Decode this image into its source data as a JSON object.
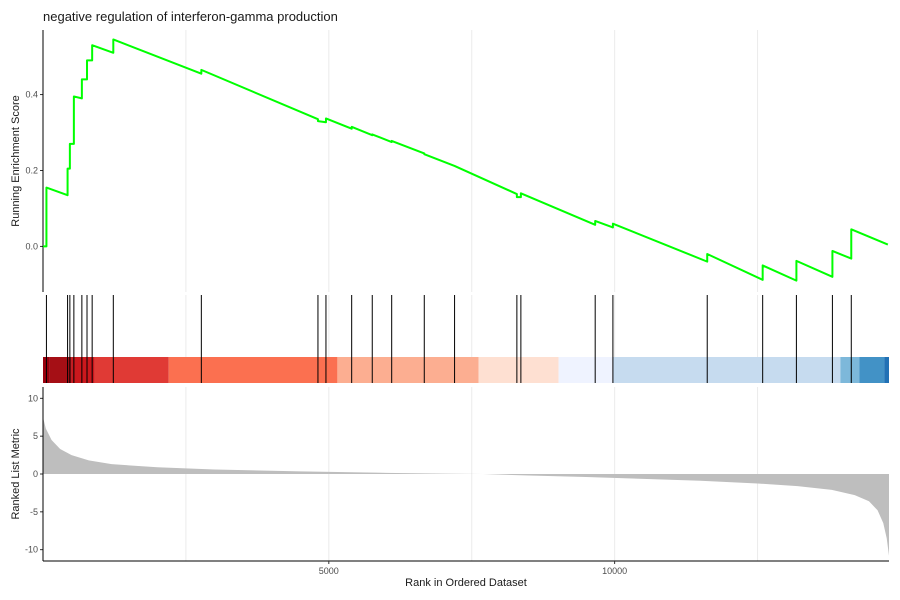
{
  "chart_data": {
    "type": "line",
    "title": "negative regulation of interferon-gamma production",
    "xlabel": "Rank in Ordered Dataset",
    "x_range": [
      0,
      14800
    ],
    "x_ticks": [
      5000,
      10000
    ],
    "x_tick_labels": [
      "5000",
      "10000"
    ],
    "grid": true,
    "series_color": "#00ff00",
    "enrichment": {
      "ylabel": "Running Enrichment Score",
      "y_range": [
        -0.12,
        0.57
      ],
      "y_ticks": [
        0.0,
        0.2,
        0.4
      ],
      "y_tick_labels": [
        "0.0",
        "0.2",
        "0.4"
      ],
      "points": [
        [
          0,
          0.0
        ],
        [
          60,
          0.0
        ],
        [
          60,
          0.155
        ],
        [
          430,
          0.135
        ],
        [
          430,
          0.205
        ],
        [
          470,
          0.205
        ],
        [
          470,
          0.27
        ],
        [
          540,
          0.27
        ],
        [
          540,
          0.395
        ],
        [
          680,
          0.39
        ],
        [
          680,
          0.44
        ],
        [
          770,
          0.44
        ],
        [
          770,
          0.49
        ],
        [
          860,
          0.49
        ],
        [
          860,
          0.53
        ],
        [
          1230,
          0.51
        ],
        [
          1230,
          0.545
        ],
        [
          2770,
          0.455
        ],
        [
          2770,
          0.465
        ],
        [
          4810,
          0.335
        ],
        [
          4810,
          0.33
        ],
        [
          4950,
          0.327
        ],
        [
          4950,
          0.337
        ],
        [
          5400,
          0.31
        ],
        [
          5400,
          0.315
        ],
        [
          5760,
          0.293
        ],
        [
          5760,
          0.295
        ],
        [
          6100,
          0.275
        ],
        [
          6100,
          0.278
        ],
        [
          6670,
          0.245
        ],
        [
          6670,
          0.243
        ],
        [
          7200,
          0.212
        ],
        [
          8290,
          0.138
        ],
        [
          8290,
          0.13
        ],
        [
          8360,
          0.13
        ],
        [
          8360,
          0.14
        ],
        [
          9660,
          0.057
        ],
        [
          9660,
          0.067
        ],
        [
          9970,
          0.05
        ],
        [
          9970,
          0.06
        ],
        [
          11620,
          -0.04
        ],
        [
          11620,
          -0.02
        ],
        [
          12590,
          -0.088
        ],
        [
          12590,
          -0.05
        ],
        [
          13180,
          -0.09
        ],
        [
          13180,
          -0.038
        ],
        [
          13810,
          -0.08
        ],
        [
          13810,
          -0.012
        ],
        [
          14140,
          -0.032
        ],
        [
          14140,
          0.045
        ],
        [
          14780,
          0.005
        ]
      ]
    },
    "hits": [
      60,
      430,
      470,
      540,
      680,
      770,
      860,
      1230,
      2770,
      4810,
      4950,
      5400,
      5760,
      6100,
      6670,
      7200,
      8290,
      8360,
      9660,
      9970,
      11620,
      12590,
      13180,
      13810,
      14140
    ],
    "color_bands": [
      {
        "from": 0,
        "to": 120,
        "color": "#99000d"
      },
      {
        "from": 120,
        "to": 500,
        "color": "#a50f15"
      },
      {
        "from": 500,
        "to": 900,
        "color": "#cb181d"
      },
      {
        "from": 900,
        "to": 2200,
        "color": "#e03a35"
      },
      {
        "from": 2200,
        "to": 5150,
        "color": "#fb7050"
      },
      {
        "from": 5150,
        "to": 7620,
        "color": "#fcae91"
      },
      {
        "from": 7620,
        "to": 9020,
        "color": "#fee0d2"
      },
      {
        "from": 9020,
        "to": 9970,
        "color": "#eff3ff"
      },
      {
        "from": 9970,
        "to": 13950,
        "color": "#c6dbef"
      },
      {
        "from": 13950,
        "to": 14280,
        "color": "#7db8da"
      },
      {
        "from": 14280,
        "to": 14720,
        "color": "#4292c6"
      },
      {
        "from": 14720,
        "to": 14800,
        "color": "#2171b5"
      }
    ],
    "ranked_metric": {
      "ylabel": "Ranked List Metric",
      "y_range": [
        -11.5,
        11.5
      ],
      "y_ticks": [
        10,
        5,
        0,
        -5,
        -10
      ],
      "y_tick_labels": [
        "10",
        "5",
        "0",
        "-5",
        "-10"
      ],
      "fill_color": "#bebebe",
      "points": [
        [
          0,
          7.5
        ],
        [
          50,
          6.0
        ],
        [
          150,
          4.5
        ],
        [
          300,
          3.3
        ],
        [
          500,
          2.5
        ],
        [
          800,
          1.8
        ],
        [
          1200,
          1.3
        ],
        [
          2000,
          0.9
        ],
        [
          3000,
          0.6
        ],
        [
          4500,
          0.35
        ],
        [
          6000,
          0.15
        ],
        [
          7000,
          0.05
        ],
        [
          7700,
          0.0
        ],
        [
          8500,
          -0.2
        ],
        [
          9500,
          -0.4
        ],
        [
          10500,
          -0.65
        ],
        [
          11500,
          -0.9
        ],
        [
          12500,
          -1.25
        ],
        [
          13200,
          -1.6
        ],
        [
          13800,
          -2.1
        ],
        [
          14200,
          -2.8
        ],
        [
          14450,
          -3.6
        ],
        [
          14600,
          -4.8
        ],
        [
          14700,
          -6.5
        ],
        [
          14760,
          -8.5
        ],
        [
          14800,
          -10.8
        ]
      ]
    }
  }
}
